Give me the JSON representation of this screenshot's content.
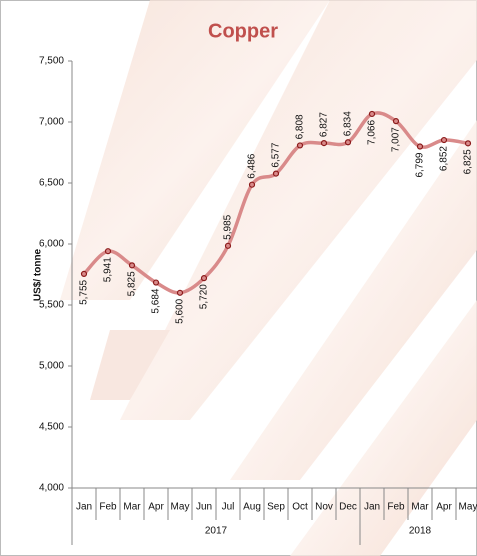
{
  "chart_data": {
    "type": "line",
    "title": "Copper",
    "y_label": "US$/ tonne",
    "groups": [
      {
        "label": "2017",
        "categories": [
          "Jan",
          "Feb",
          "Mar",
          "Apr",
          "May",
          "Jun",
          "Jul",
          "Aug",
          "Sep",
          "Oct",
          "Nov",
          "Dec"
        ]
      },
      {
        "label": "2018",
        "categories": [
          "Jan",
          "Feb",
          "Mar",
          "Apr",
          "May"
        ]
      }
    ],
    "values": [
      5755,
      5941,
      5825,
      5684,
      5600,
      5720,
      5985,
      6486,
      6577,
      6808,
      6827,
      6834,
      7066,
      7007,
      6799,
      6852,
      6825
    ],
    "value_labels": [
      "5,755",
      "5,941",
      "5,825",
      "5,684",
      "5,600",
      "5,720",
      "5,985",
      "6,486",
      "6,577",
      "6,808",
      "6,827",
      "6,834",
      "7,066",
      "7,007",
      "6,799",
      "6,852",
      "6,825"
    ],
    "color": "#d98a8a",
    "marker_color": "#8b1a1a",
    "title_color": "#c0504d",
    "ylim": [
      4000,
      7500
    ],
    "yticks": [
      {
        "value": 4000,
        "label": "4,000"
      },
      {
        "value": 4500,
        "label": "4,500"
      },
      {
        "value": 5000,
        "label": "5,000"
      },
      {
        "value": 5500,
        "label": "5,500"
      },
      {
        "value": 6000,
        "label": "6,000"
      },
      {
        "value": 6500,
        "label": "6,500"
      },
      {
        "value": 7000,
        "label": "7,000"
      },
      {
        "value": 7500,
        "label": "7,500"
      }
    ]
  }
}
